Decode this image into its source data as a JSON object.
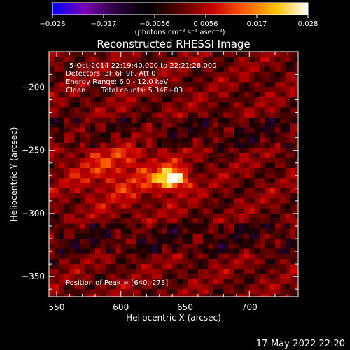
{
  "chart_data": {
    "type": "heatmap",
    "title": "Reconstructed RHESSI Image",
    "xlabel": "Heliocentric X (arcsec)",
    "ylabel": "Heliocentric Y (arcsec)",
    "xlim": [
      544,
      738
    ],
    "ylim": [
      -366,
      -172
    ],
    "xticks": [
      550,
      600,
      650,
      700
    ],
    "yticks": [
      -200,
      -250,
      -300,
      -350
    ],
    "colorbar": {
      "label": "(photons cm⁻² s⁻¹ asec⁻²)",
      "range": [
        -0.028,
        0.028
      ],
      "ticks": [
        "−0.028",
        "−0.017",
        "−0.0056",
        "0.0056",
        "0.017",
        "0.028"
      ],
      "colormap_stops": [
        "#0000ff",
        "#7a00b4",
        "#2a0040",
        "#000000",
        "#5a0000",
        "#c40000",
        "#ff5a00",
        "#ffc000",
        "#ffffff"
      ]
    },
    "annotations": [
      "5-Oct-2014 22:19:40.000 to 22:21:28.000",
      "Detectors: 3F 6F 9F, Att 0",
      "Energy Range: 6.0 - 12.0 keV",
      "Clean",
      "Total counts: 5.34E+03"
    ],
    "peak_label": "Position of Peak = [640,-273]",
    "peak": {
      "x": 640,
      "y": -273
    },
    "grid": false
  },
  "footer": {
    "timestamp": "17-May-2022 22:20"
  }
}
